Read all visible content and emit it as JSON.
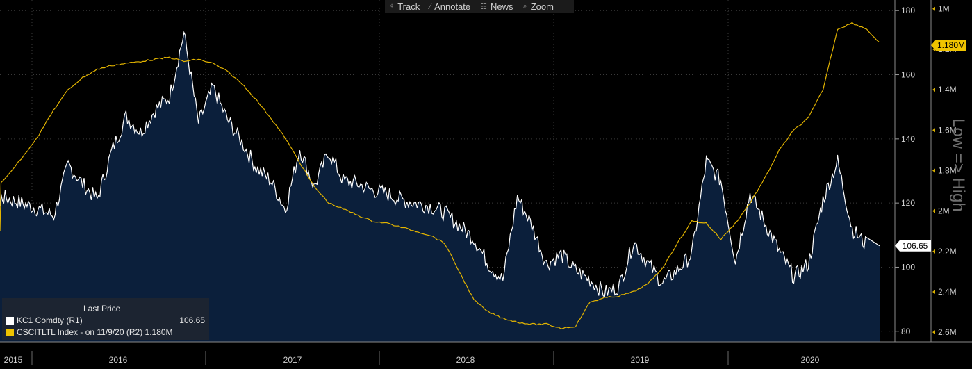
{
  "toolbar": {
    "items": [
      {
        "label": "Track",
        "icon": "crosshair-icon"
      },
      {
        "label": "Annotate",
        "icon": "pencil-icon"
      },
      {
        "label": "News",
        "icon": "news-icon"
      },
      {
        "label": "Zoom",
        "icon": "magnifier-icon"
      }
    ]
  },
  "legend": {
    "title": "Last Price",
    "rows": [
      {
        "label": "KC1 Comdty  (R1)",
        "value": "106.65",
        "color": "#ffffff"
      },
      {
        "label": "CSCITLTL Index -  on 11/9/20  (R2) 1.180M",
        "value": "",
        "color": "#f0c400"
      }
    ]
  },
  "colors": {
    "background": "#000000",
    "price_line": "#ffffff",
    "area_fill": "#0b1f3b",
    "index_line": "#e3b400",
    "grid": "#3a3a3a"
  },
  "chart_data": {
    "type": "line",
    "x_axis": {
      "ticks": [
        "2015",
        "2016",
        "2017",
        "2018",
        "2019",
        "2020"
      ]
    },
    "y_axis_r1": {
      "ticks": [
        80,
        100,
        120,
        140,
        160,
        180
      ],
      "range": [
        78,
        182
      ]
    },
    "y_axis_r2": {
      "ticks": [
        "1M",
        "1.2M",
        "1.4M",
        "1.6M",
        "1.8M",
        "2M",
        "2.2M",
        "2.4M",
        "2.6M"
      ],
      "range_inverted": [
        0.97,
        2.62
      ],
      "title": "Low => High"
    },
    "last_labels": {
      "r1": "106.65",
      "r2": "1.180M"
    },
    "series": [
      {
        "name": "KC1 Comdty",
        "axis": "R1",
        "style": "line-with-area",
        "points": [
          [
            "2015-09",
            119
          ],
          [
            "2015-10",
            117
          ],
          [
            "2015-11",
            122
          ],
          [
            "2015-12",
            120
          ],
          [
            "2016-01",
            118
          ],
          [
            "2016-02",
            116
          ],
          [
            "2016-03",
            132
          ],
          [
            "2016-04",
            126
          ],
          [
            "2016-05",
            121
          ],
          [
            "2016-06",
            136
          ],
          [
            "2016-07",
            147
          ],
          [
            "2016-08",
            142
          ],
          [
            "2016-09",
            149
          ],
          [
            "2016-10",
            153
          ],
          [
            "2016-11",
            173
          ],
          [
            "2016-12",
            145
          ],
          [
            "2017-01",
            156
          ],
          [
            "2017-02",
            146
          ],
          [
            "2017-03",
            139
          ],
          [
            "2017-04",
            131
          ],
          [
            "2017-05",
            127
          ],
          [
            "2017-06",
            118
          ],
          [
            "2017-07",
            137
          ],
          [
            "2017-08",
            125
          ],
          [
            "2017-09",
            136
          ],
          [
            "2017-10",
            127
          ],
          [
            "2017-11",
            126
          ],
          [
            "2017-12",
            124
          ],
          [
            "2018-01",
            123
          ],
          [
            "2018-02",
            121
          ],
          [
            "2018-03",
            120
          ],
          [
            "2018-04",
            119
          ],
          [
            "2018-05",
            117
          ],
          [
            "2018-06",
            113
          ],
          [
            "2018-07",
            109
          ],
          [
            "2018-08",
            101
          ],
          [
            "2018-09",
            96
          ],
          [
            "2018-10",
            122
          ],
          [
            "2018-11",
            113
          ],
          [
            "2018-12",
            101
          ],
          [
            "2019-01",
            104
          ],
          [
            "2019-02",
            99
          ],
          [
            "2019-03",
            96
          ],
          [
            "2019-04",
            92
          ],
          [
            "2019-05",
            94
          ],
          [
            "2019-06",
            108
          ],
          [
            "2019-07",
            101
          ],
          [
            "2019-08",
            95
          ],
          [
            "2019-09",
            99
          ],
          [
            "2019-10",
            104
          ],
          [
            "2019-11",
            133
          ],
          [
            "2019-12",
            127
          ],
          [
            "2020-01",
            102
          ],
          [
            "2020-02",
            123
          ],
          [
            "2020-03",
            114
          ],
          [
            "2020-04",
            105
          ],
          [
            "2020-05",
            97
          ],
          [
            "2020-06",
            101
          ],
          [
            "2020-07",
            121
          ],
          [
            "2020-08",
            133
          ],
          [
            "2020-09",
            112
          ],
          [
            "2020-10",
            106.65
          ]
        ]
      },
      {
        "name": "CSCITLTL Index",
        "axis": "R2",
        "style": "line",
        "points": [
          [
            "2015-09",
            2.1
          ],
          [
            "2015-10",
            2.0
          ],
          [
            "2015-11",
            1.86
          ],
          [
            "2015-12",
            1.74
          ],
          [
            "2016-01",
            1.62
          ],
          [
            "2016-02",
            1.5
          ],
          [
            "2016-03",
            1.4
          ],
          [
            "2016-04",
            1.34
          ],
          [
            "2016-05",
            1.3
          ],
          [
            "2016-06",
            1.28
          ],
          [
            "2016-07",
            1.27
          ],
          [
            "2016-08",
            1.26
          ],
          [
            "2016-09",
            1.25
          ],
          [
            "2016-10",
            1.24
          ],
          [
            "2016-11",
            1.26
          ],
          [
            "2016-12",
            1.25
          ],
          [
            "2017-01",
            1.27
          ],
          [
            "2017-02",
            1.31
          ],
          [
            "2017-03",
            1.37
          ],
          [
            "2017-04",
            1.45
          ],
          [
            "2017-05",
            1.54
          ],
          [
            "2017-06",
            1.64
          ],
          [
            "2017-07",
            1.76
          ],
          [
            "2017-08",
            1.88
          ],
          [
            "2017-09",
            1.96
          ],
          [
            "2017-10",
            1.99
          ],
          [
            "2017-11",
            2.02
          ],
          [
            "2017-12",
            2.05
          ],
          [
            "2018-01",
            2.06
          ],
          [
            "2018-02",
            2.08
          ],
          [
            "2018-03",
            2.1
          ],
          [
            "2018-04",
            2.12
          ],
          [
            "2018-05",
            2.16
          ],
          [
            "2018-06",
            2.3
          ],
          [
            "2018-07",
            2.44
          ],
          [
            "2018-08",
            2.5
          ],
          [
            "2018-09",
            2.53
          ],
          [
            "2018-10",
            2.55
          ],
          [
            "2018-11",
            2.56
          ],
          [
            "2018-12",
            2.56
          ],
          [
            "2019-01",
            2.58
          ],
          [
            "2019-02",
            2.57
          ],
          [
            "2019-03",
            2.45
          ],
          [
            "2019-04",
            2.43
          ],
          [
            "2019-05",
            2.42
          ],
          [
            "2019-06",
            2.4
          ],
          [
            "2019-07",
            2.36
          ],
          [
            "2019-08",
            2.28
          ],
          [
            "2019-09",
            2.16
          ],
          [
            "2019-10",
            2.05
          ],
          [
            "2019-11",
            2.06
          ],
          [
            "2019-12",
            2.14
          ],
          [
            "2020-01",
            2.06
          ],
          [
            "2020-02",
            1.96
          ],
          [
            "2020-03",
            1.84
          ],
          [
            "2020-04",
            1.7
          ],
          [
            "2020-05",
            1.6
          ],
          [
            "2020-06",
            1.54
          ],
          [
            "2020-07",
            1.4
          ],
          [
            "2020-08",
            1.1
          ],
          [
            "2020-09",
            1.07
          ],
          [
            "2020-10",
            1.1
          ],
          [
            "2020-11",
            1.18
          ]
        ]
      }
    ]
  }
}
